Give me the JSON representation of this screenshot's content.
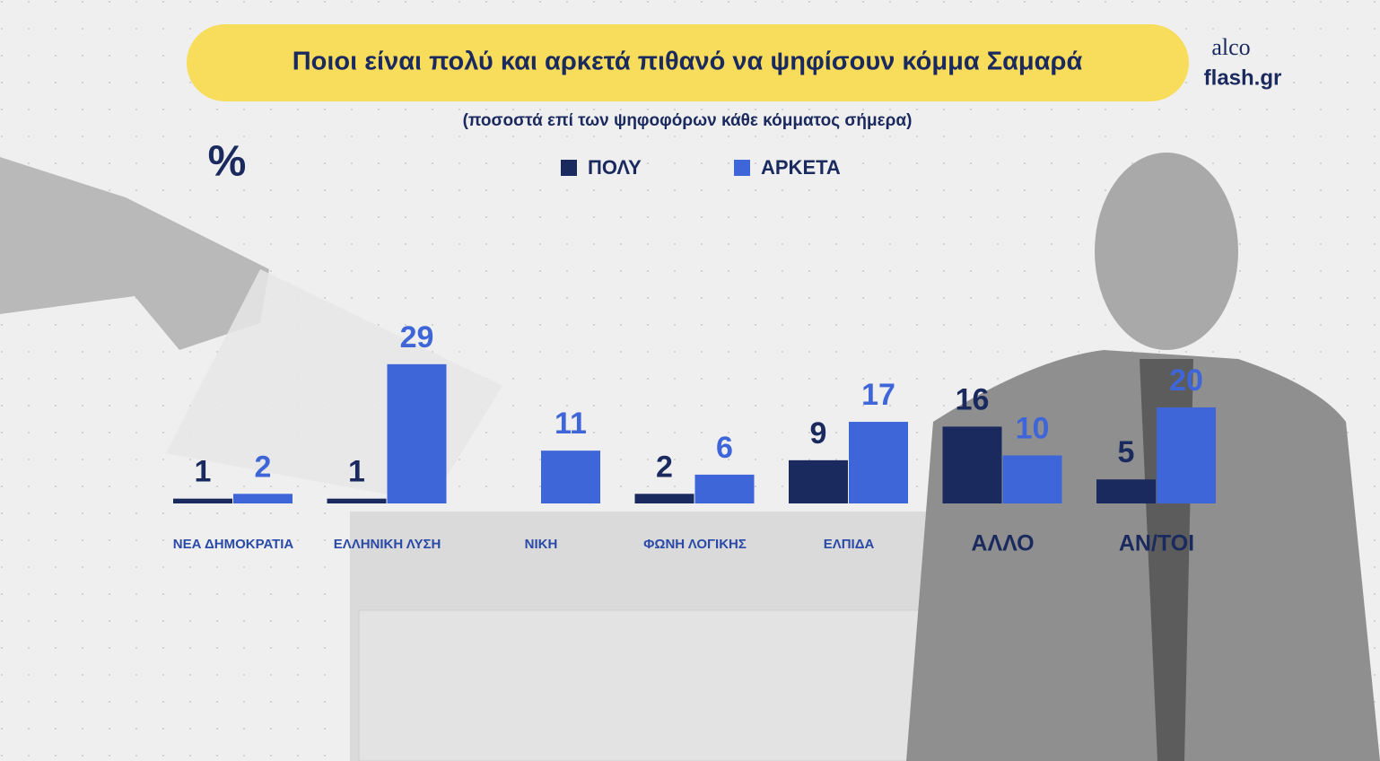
{
  "chart_data": {
    "type": "bar",
    "title": "Ποιοι είναι πολύ και αρκετά πιθανό να ψηφίσουν κόμμα Σαμαρά",
    "subtitle": "(ποσοστά επί των ψηφοφόρων κάθε κόμματος σήμερα)",
    "unit_label": "%",
    "brand": [
      "alco",
      "flash.gr"
    ],
    "categories": [
      "ΝΕΑ ΔΗΜΟΚΡΑΤΙΑ",
      "ΕΛΛΗΝΙΚΗ ΛΥΣΗ",
      "ΝΙΚΗ",
      "ΦΩΝΗ ΛΟΓΙΚΗΣ",
      "ΕΛΠΙΔΑ",
      "ΑΛΛΟ",
      "ΑΝ/ΤΟΙ"
    ],
    "series": [
      {
        "name": "ΠΟΛΥ",
        "color": "#1b2a5e",
        "values": [
          1,
          1,
          null,
          2,
          9,
          16,
          5
        ]
      },
      {
        "name": "ΑΡΚΕΤΑ",
        "color": "#3f66d8",
        "values": [
          2,
          29,
          11,
          6,
          17,
          10,
          20
        ]
      }
    ]
  }
}
